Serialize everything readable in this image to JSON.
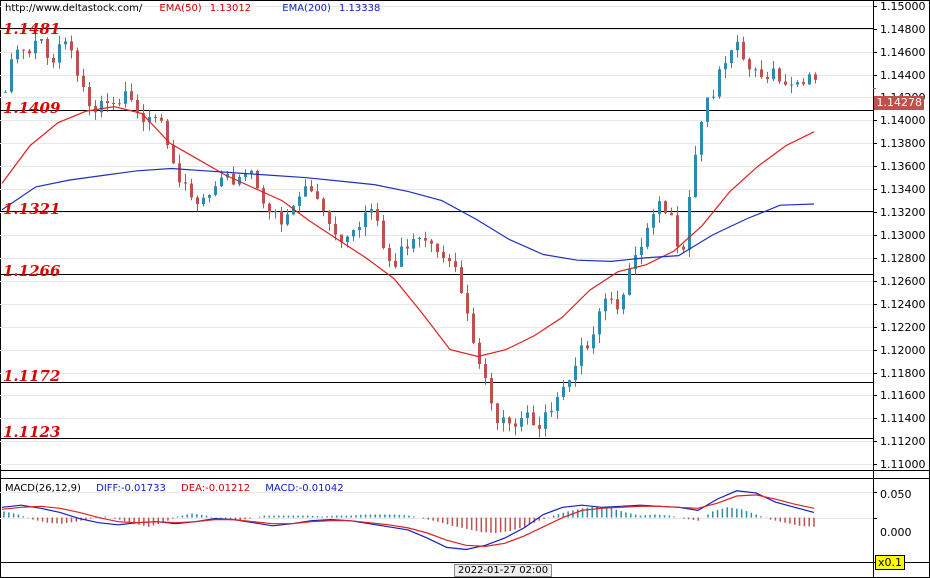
{
  "header": {
    "url": "http://www.deltastock.com/",
    "ema50_label": "EMA(50)",
    "ema50_value": "1.13012",
    "ema200_label": "EMA(200)",
    "ema200_value": "1.13338"
  },
  "macd_header": {
    "label": "MACD(26,12,9)",
    "diff": "DIFF:-0.01733",
    "dea": "DEA:-0.01212",
    "macd": "MACD:-0.01042"
  },
  "current_price": "1.14278",
  "time_label": "2022-01-27 02:00",
  "zoom_label": "x0.1",
  "colors": {
    "bull": "#2b8cb0",
    "bear": "#c0504d",
    "ema50": "#e02020",
    "ema200": "#2030c0",
    "level_text": "#e00000"
  },
  "chart_data": {
    "type": "candlestick",
    "ylim": [
      1.1095,
      1.1505
    ],
    "y_ticks": [
      "1.15000",
      "1.14800",
      "1.14600",
      "1.14400",
      "1.14200",
      "1.14000",
      "1.13800",
      "1.13600",
      "1.13400",
      "1.13200",
      "1.13000",
      "1.12800",
      "1.12600",
      "1.12400",
      "1.12200",
      "1.12000",
      "1.11800",
      "1.11600",
      "1.11400",
      "1.11200",
      "1.11000"
    ],
    "levels": [
      {
        "label": "1.1481",
        "value": 1.1481
      },
      {
        "label": "1.1409",
        "value": 1.1409
      },
      {
        "label": "1.1321",
        "value": 1.1321
      },
      {
        "label": "1.1266",
        "value": 1.1266
      },
      {
        "label": "1.1172",
        "value": 1.1172
      },
      {
        "label": "1.1123",
        "value": 1.1123
      }
    ],
    "close_path": [
      1.1425,
      1.1462,
      1.1452,
      1.1471,
      1.1448,
      1.1474,
      1.1462,
      1.143,
      1.1402,
      1.1412,
      1.1408,
      1.1421,
      1.1398,
      1.1411,
      1.1406,
      1.1375,
      1.134,
      1.1322,
      1.133,
      1.1338,
      1.1345,
      1.1352,
      1.136,
      1.134,
      1.1318,
      1.1305,
      1.1325,
      1.134,
      1.1335,
      1.132,
      1.1295,
      1.1308,
      1.1315,
      1.1322,
      1.129,
      1.1268,
      1.1292,
      1.1305,
      1.13,
      1.1292,
      1.1285,
      1.1252,
      1.121,
      1.1178,
      1.1142,
      1.1148,
      1.1138,
      1.1152,
      1.113,
      1.1142,
      1.1158,
      1.1168,
      1.1198,
      1.1222,
      1.1252,
      1.124,
      1.1262,
      1.1278,
      1.1305,
      1.1322,
      1.1312,
      1.1288,
      1.1365,
      1.1418,
      1.1428,
      1.145,
      1.146,
      1.1445,
      1.1433,
      1.1448,
      1.1438,
      1.1432,
      1.1441,
      1.1428
    ],
    "ema50": [
      1.1345,
      1.1378,
      1.1398,
      1.1408,
      1.1412,
      1.1406,
      1.138,
      1.1366,
      1.1352,
      1.1341,
      1.133,
      1.1312,
      1.1296,
      1.128,
      1.1262,
      1.1232,
      1.12,
      1.1194,
      1.12,
      1.1212,
      1.1228,
      1.1252,
      1.1268,
      1.1274,
      1.1286,
      1.1308,
      1.1338,
      1.136,
      1.1378,
      1.139
    ],
    "ema200": [
      1.1322,
      1.1342,
      1.1348,
      1.1352,
      1.1356,
      1.1358,
      1.1356,
      1.1354,
      1.1352,
      1.135,
      1.1347,
      1.1344,
      1.1338,
      1.133,
      1.1314,
      1.1296,
      1.1283,
      1.1278,
      1.1277,
      1.128,
      1.1282,
      1.13,
      1.1314,
      1.1326,
      1.1327
    ],
    "macd_hist": [
      0.012,
      0.006,
      -0.004,
      -0.01,
      -0.012,
      -0.008,
      -0.002,
      0.002,
      -0.004,
      -0.012,
      -0.018,
      -0.01,
      0.002,
      0.008,
      0.004,
      -0.004,
      -0.006,
      -0.002,
      0.004,
      0.004,
      0.004,
      0.004,
      0.002,
      0.004,
      0.004,
      0.006,
      0.006,
      0.006,
      0.004,
      -0.002,
      -0.008,
      -0.016,
      -0.022,
      -0.028,
      -0.03,
      -0.026,
      -0.018,
      -0.006,
      0.004,
      0.012,
      0.018,
      0.022,
      0.018,
      0.01,
      0.004,
      0.006,
      0.004,
      -0.002,
      -0.006,
      0.012,
      0.02,
      0.016,
      0.006,
      -0.004,
      -0.01,
      -0.016,
      -0.018
    ],
    "macd_diff": [
      0.02,
      0.024,
      0.018,
      0.01,
      -0.002,
      -0.01,
      -0.014,
      -0.01,
      -0.008,
      -0.012,
      -0.008,
      -0.002,
      -0.004,
      -0.01,
      -0.016,
      -0.012,
      -0.006,
      -0.004,
      -0.006,
      -0.012,
      -0.018,
      -0.024,
      -0.04,
      -0.058,
      -0.062,
      -0.054,
      -0.04,
      -0.02,
      0.006,
      0.02,
      0.024,
      0.02,
      0.022,
      0.024,
      0.022,
      0.02,
      0.014,
      0.036,
      0.052,
      0.048,
      0.03,
      0.02,
      0.01
    ],
    "macd_dea": [
      0.016,
      0.02,
      0.022,
      0.018,
      0.01,
      0.0,
      -0.008,
      -0.01,
      -0.008,
      -0.01,
      -0.008,
      -0.004,
      -0.004,
      -0.008,
      -0.012,
      -0.012,
      -0.008,
      -0.006,
      -0.006,
      -0.01,
      -0.014,
      -0.02,
      -0.03,
      -0.044,
      -0.054,
      -0.056,
      -0.05,
      -0.036,
      -0.018,
      0.0,
      0.014,
      0.018,
      0.02,
      0.022,
      0.022,
      0.02,
      0.018,
      0.028,
      0.042,
      0.044,
      0.036,
      0.026,
      0.018
    ],
    "macd_ylim": [
      -0.065,
      0.075
    ],
    "macd_ticks": [
      "0.050",
      "0.000"
    ]
  }
}
